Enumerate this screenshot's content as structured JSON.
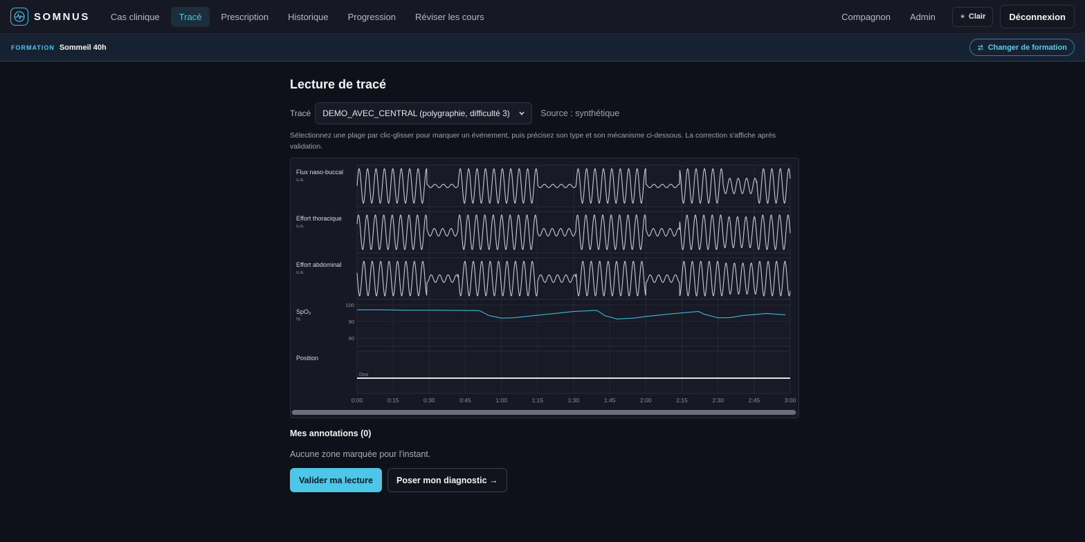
{
  "header": {
    "logo_text": "SOMNUS",
    "nav": [
      "Cas clinique",
      "Tracé",
      "Prescription",
      "Historique",
      "Progression",
      "Réviser les cours"
    ],
    "active_nav": "Tracé",
    "right_links": [
      "Compagnon",
      "Admin"
    ],
    "theme_label": "Clair",
    "theme_icon": "☀",
    "logout_label": "Déconnexion"
  },
  "formation": {
    "label": "FORMATION",
    "name": "Sommeil 40h",
    "change_label": "Changer de formation"
  },
  "main": {
    "title": "Lecture de tracé",
    "select_label": "Tracé",
    "select_value": "DEMO_AVEC_CENTRAL (polygraphie, difficulté 3)",
    "source": "Source : synthétique",
    "instructions": "Sélectionnez une plage par clic-glisser pour marquer un événement, puis précisez son type et son mécanisme ci-dessous. La correction s'affiche après validation.",
    "annotations_title": "Mes annotations (0)",
    "annotations_empty": "Aucune zone marquée pour l'instant.",
    "validate_label": "Valider ma lecture",
    "diagnose_label": "Poser mon diagnostic →"
  },
  "colors": {
    "accent": "#4cc7e8",
    "trace": "#c9ccd3",
    "spo2": "#3fb8d8"
  },
  "chart_data": {
    "type": "line",
    "x_unit": "min:sec",
    "xlim": [
      0,
      180
    ],
    "x_ticks": [
      "0:00",
      "0:15",
      "0:30",
      "0:45",
      "1:00",
      "1:15",
      "1:30",
      "1:45",
      "2:00",
      "2:15",
      "2:30",
      "2:45",
      "3:00"
    ],
    "channels": [
      {
        "name": "Flux naso-buccal",
        "unit": "u.a.",
        "kind": "airflow"
      },
      {
        "name": "Effort thoracique",
        "unit": "u.a.",
        "kind": "thoracic"
      },
      {
        "name": "Effort abdominal",
        "unit": "u.a.",
        "kind": "abdominal"
      },
      {
        "name": "SpO₂",
        "unit": "%",
        "kind": "spo2",
        "y_ticks": [
          "100",
          "90",
          "80"
        ],
        "ylim": [
          75,
          100
        ]
      },
      {
        "name": "Position",
        "unit": "",
        "kind": "position",
        "value_label": "Dos"
      }
    ],
    "events": [
      {
        "type": "low_flow",
        "start": 29,
        "end": 42
      },
      {
        "type": "low_flow",
        "start": 75,
        "end": 91
      },
      {
        "type": "low_flow",
        "start": 120,
        "end": 134
      },
      {
        "type": "reduced_flow",
        "start": 152,
        "end": 166
      }
    ],
    "spo2": {
      "x": [
        0,
        10,
        20,
        30,
        40,
        50,
        51,
        55,
        60,
        65,
        70,
        80,
        90,
        99,
        100,
        103,
        108,
        115,
        120,
        130,
        140,
        142,
        144,
        150,
        155,
        160,
        170,
        178
      ],
      "y": [
        97,
        97,
        96.8,
        96.8,
        96.7,
        96.6,
        96.4,
        93.5,
        92,
        92.2,
        93,
        94.5,
        96,
        96.7,
        96.4,
        93.5,
        91.5,
        92,
        93,
        94.5,
        95.8,
        96,
        94.5,
        92.2,
        92.3,
        93.5,
        94.8,
        94
      ]
    }
  }
}
